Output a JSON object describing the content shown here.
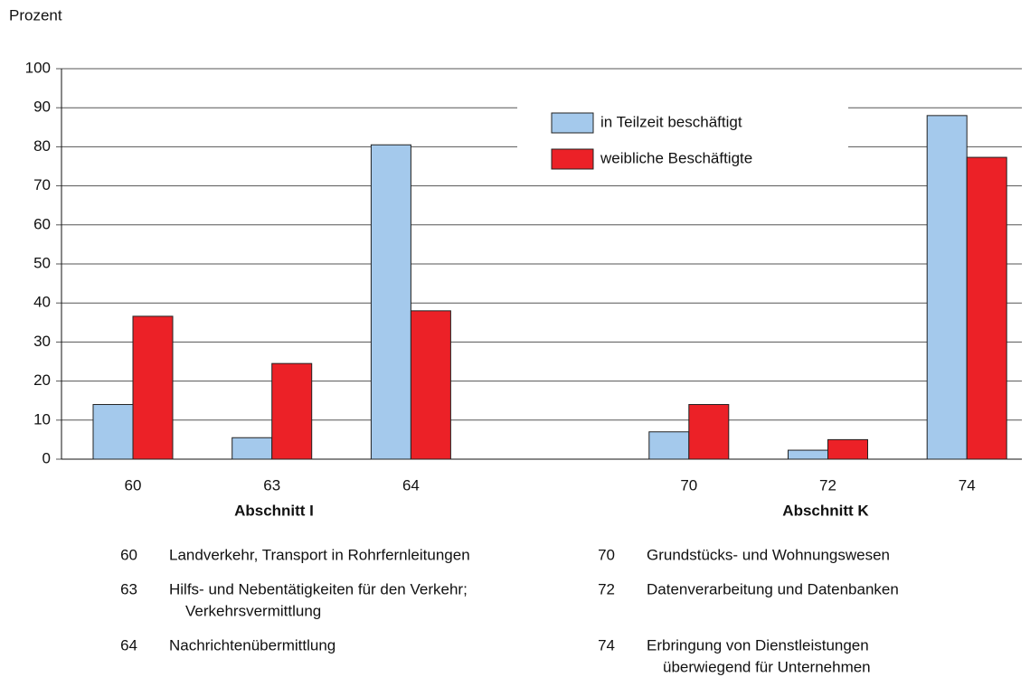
{
  "chart_data": {
    "type": "bar",
    "y_label": "Prozent",
    "categories": [
      "60",
      "63",
      "64",
      null,
      "70",
      "72",
      "74"
    ],
    "series": [
      {
        "name": "in Teilzeit beschäftigt",
        "color": "#a4c9ec",
        "values": [
          14,
          5.5,
          80.5,
          null,
          7,
          2.3,
          88
        ]
      },
      {
        "name": "weibliche Beschäftigte",
        "color": "#ec2127",
        "values": [
          36.6,
          24.5,
          38,
          null,
          14,
          5,
          77.3
        ]
      }
    ],
    "group_labels": [
      "Abschnitt I",
      "Abschnitt K"
    ],
    "ylim": [
      0,
      100
    ],
    "yticks": [
      0,
      10,
      20,
      30,
      40,
      50,
      60,
      70,
      80,
      90,
      100
    ],
    "grid": true,
    "notes": [
      {
        "code": "60",
        "lines": [
          "Landverkehr, Transport in Rohrfernleitungen"
        ]
      },
      {
        "code": "63",
        "lines": [
          "Hilfs- und Nebentätigkeiten für den Verkehr;",
          "Verkehrsvermittlung"
        ]
      },
      {
        "code": "64",
        "lines": [
          "Nachrichtenübermittlung"
        ]
      },
      {
        "code": "70",
        "lines": [
          "Grundstücks- und Wohnungswesen"
        ]
      },
      {
        "code": "72",
        "lines": [
          "Datenverarbeitung und Datenbanken"
        ]
      },
      {
        "code": "74",
        "lines": [
          "Erbringung von  Dienstleistungen",
          "überwiegend für Unternehmen"
        ]
      }
    ]
  }
}
